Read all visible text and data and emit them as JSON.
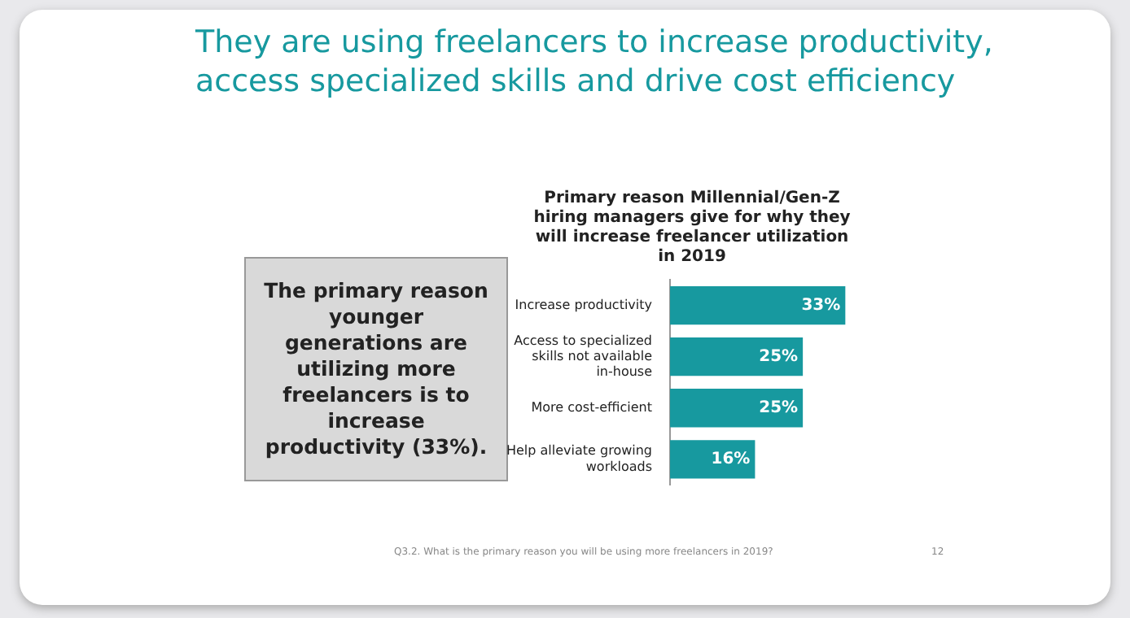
{
  "chart_data": {
    "type": "bar",
    "orientation": "horizontal",
    "title": "They are using freelancers to increase productivity, access specialized skills and drive cost efficiency",
    "subtitle": "Primary reason Millennial/Gen-Z hiring managers give for why they will increase freelancer utilization in 2019",
    "categories": [
      "Increase productivity",
      "Access to specialized skills not available in-house",
      "More cost-efficient",
      "Help alleviate growing workloads"
    ],
    "values": [
      33,
      25,
      25,
      16
    ],
    "color": "#17999f",
    "data_labels": true,
    "value_labels": [
      "33%",
      "25%",
      "25%",
      "16%"
    ],
    "grid": false,
    "legend": false,
    "tick_labels": "y",
    "annotations": [
      "The primary reason younger generations are utilizing more freelancers is to increase productivity (33%).",
      "Q3.2. What is the primary reason you will be using more freelancers in 2019?",
      "12"
    ]
  }
}
